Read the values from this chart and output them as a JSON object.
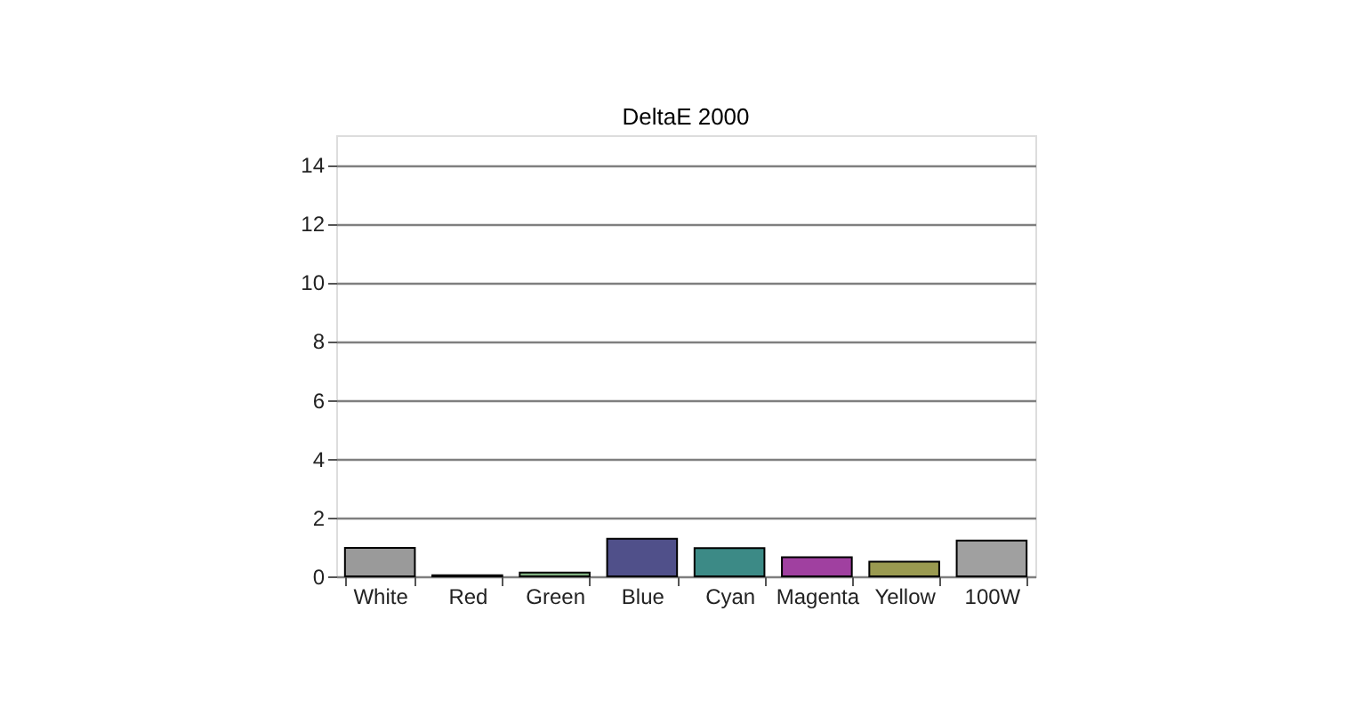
{
  "chart_data": {
    "type": "bar",
    "title": "DeltaE 2000",
    "categories": [
      "White",
      "Red",
      "Green",
      "Blue",
      "Cyan",
      "Magenta",
      "Yellow",
      "100W"
    ],
    "values": [
      0.97,
      0.04,
      0.13,
      1.28,
      0.96,
      0.65,
      0.5,
      1.22
    ],
    "colors": [
      "#9a9a9a",
      "#802020",
      "#80b080",
      "#50508a",
      "#3c8a86",
      "#a040a0",
      "#9a9a50",
      "#a0a0a0"
    ],
    "ylim": [
      0,
      15
    ],
    "yticks": [
      0,
      2,
      4,
      6,
      8,
      10,
      12,
      14
    ],
    "grid": "y"
  }
}
